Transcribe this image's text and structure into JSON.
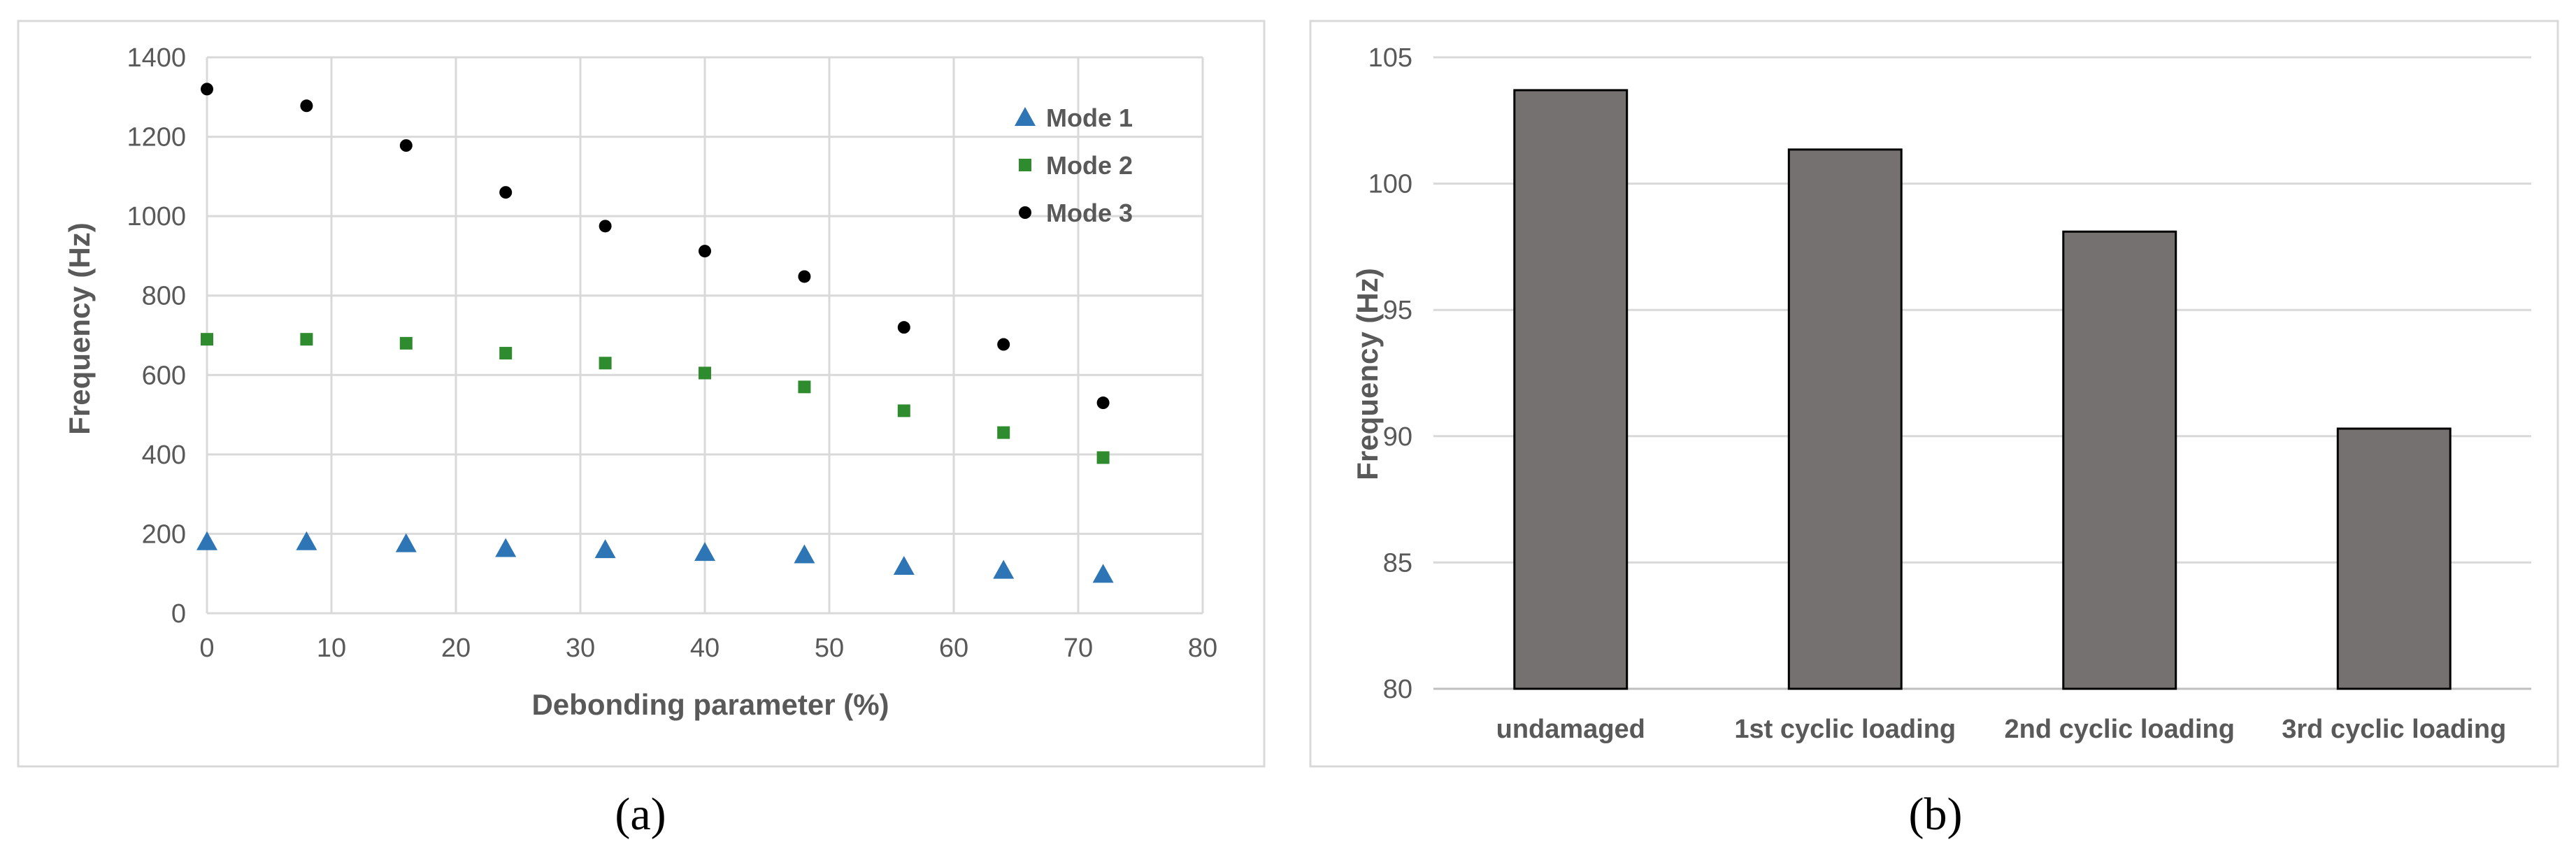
{
  "chart_data": [
    {
      "type": "scatter",
      "panel_label": "(a)",
      "xlabel": "Debonding parameter (%)",
      "ylabel": "Frequency (Hz)",
      "xlim": [
        0,
        80
      ],
      "ylim": [
        0,
        1400
      ],
      "xticks": [
        0,
        10,
        20,
        30,
        40,
        50,
        60,
        70,
        80
      ],
      "yticks": [
        0,
        200,
        400,
        600,
        800,
        1000,
        1200,
        1400
      ],
      "grid": true,
      "legend_position": "top-right",
      "series": [
        {
          "name": "Mode 1",
          "marker": "triangle",
          "color": "#2e75b6",
          "x": [
            0,
            8,
            16,
            24,
            32,
            40,
            48,
            56,
            64,
            72
          ],
          "y": [
            180,
            180,
            175,
            163,
            160,
            153,
            147,
            118,
            108,
            98
          ]
        },
        {
          "name": "Mode 2",
          "marker": "square",
          "color": "#2e8b2e",
          "x": [
            0,
            8,
            16,
            24,
            32,
            40,
            48,
            56,
            64,
            72
          ],
          "y": [
            690,
            690,
            680,
            655,
            630,
            605,
            570,
            510,
            455,
            392
          ]
        },
        {
          "name": "Mode 3",
          "marker": "circle",
          "color": "#000000",
          "x": [
            0,
            8,
            16,
            24,
            32,
            40,
            48,
            56,
            64,
            72
          ],
          "y": [
            1320,
            1278,
            1178,
            1060,
            975,
            912,
            848,
            720,
            677,
            530
          ]
        }
      ]
    },
    {
      "type": "bar",
      "panel_label": "(b)",
      "xlabel": "",
      "ylabel": "Frequency (Hz)",
      "ylim": [
        80,
        105
      ],
      "yticks": [
        80,
        85,
        90,
        95,
        100,
        105
      ],
      "grid": true,
      "color": "#767171",
      "categories": [
        "undamaged",
        "1st cyclic loading",
        "2nd cyclic loading",
        "3rd cyclic loading"
      ],
      "values": [
        103.7,
        101.35,
        98.1,
        90.3
      ]
    }
  ]
}
